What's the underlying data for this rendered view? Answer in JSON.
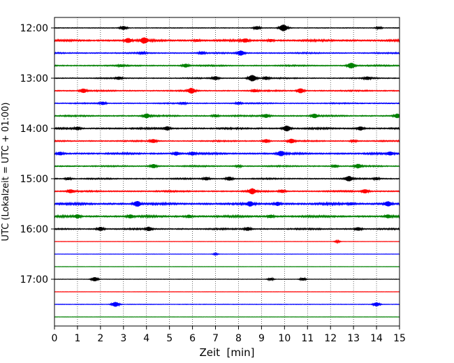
{
  "chart_data": {
    "type": "line",
    "title": "",
    "xlabel": "Zeit  [min]",
    "ylabel": "UTC (Lokalzeit = UTC + 01:00)",
    "xlim": [
      0,
      15
    ],
    "x_ticks": [
      "0",
      "1",
      "2",
      "3",
      "4",
      "5",
      "6",
      "7",
      "8",
      "9",
      "10",
      "11",
      "12",
      "13",
      "14",
      "15"
    ],
    "y_ticks": [
      "12:00",
      "13:00",
      "14:00",
      "15:00",
      "16:00",
      "17:00"
    ],
    "trace_interval_minutes": 15,
    "first_trace": "12:00",
    "last_trace": "17:45",
    "color_cycle": [
      "#000000",
      "#ff0000",
      "#0000ff",
      "#008000"
    ],
    "grid": "vertical dotted at each minute",
    "legend": "none",
    "traces": [
      {
        "start": "12:00",
        "color": "#000000",
        "noise": 0.3,
        "events": [
          {
            "t": 3.0,
            "amp": 2.4
          },
          {
            "t": 8.8,
            "amp": 2.2
          },
          {
            "t": 9.95,
            "amp": 4.4
          },
          {
            "t": 14.1,
            "amp": 1.4
          }
        ]
      },
      {
        "start": "12:15",
        "color": "#ff0000",
        "noise": 0.6,
        "events": [
          {
            "t": 3.2,
            "amp": 2.8
          },
          {
            "t": 3.9,
            "amp": 3.6
          },
          {
            "t": 6.2,
            "amp": 1.2
          },
          {
            "t": 8.3,
            "amp": 2.2
          },
          {
            "t": 9.4,
            "amp": 1.5
          }
        ]
      },
      {
        "start": "12:30",
        "color": "#0000ff",
        "noise": 0.4,
        "events": [
          {
            "t": 3.8,
            "amp": 1.4
          },
          {
            "t": 6.4,
            "amp": 1.8
          },
          {
            "t": 8.1,
            "amp": 3.2
          }
        ]
      },
      {
        "start": "12:45",
        "color": "#008000",
        "noise": 0.4,
        "events": [
          {
            "t": 2.9,
            "amp": 1.3
          },
          {
            "t": 5.7,
            "amp": 2.2
          },
          {
            "t": 12.9,
            "amp": 3.6
          }
        ]
      },
      {
        "start": "13:00",
        "color": "#000000",
        "noise": 0.35,
        "events": [
          {
            "t": 2.8,
            "amp": 1.8
          },
          {
            "t": 7.0,
            "amp": 2.3
          },
          {
            "t": 8.6,
            "amp": 4.2
          },
          {
            "t": 9.2,
            "amp": 2.0
          },
          {
            "t": 13.6,
            "amp": 2.0
          }
        ]
      },
      {
        "start": "13:15",
        "color": "#ff0000",
        "noise": 0.4,
        "events": [
          {
            "t": 1.25,
            "amp": 2.6
          },
          {
            "t": 5.95,
            "amp": 3.4
          },
          {
            "t": 8.7,
            "amp": 1.8
          },
          {
            "t": 10.7,
            "amp": 3.0
          }
        ]
      },
      {
        "start": "13:30",
        "color": "#0000ff",
        "noise": 0.35,
        "events": [
          {
            "t": 2.1,
            "amp": 2.0
          },
          {
            "t": 5.6,
            "amp": 1.3
          },
          {
            "t": 8.0,
            "amp": 1.6
          }
        ]
      },
      {
        "start": "13:45",
        "color": "#008000",
        "noise": 0.45,
        "events": [
          {
            "t": 4.0,
            "amp": 2.8
          },
          {
            "t": 7.0,
            "amp": 1.6
          },
          {
            "t": 9.2,
            "amp": 2.4
          },
          {
            "t": 11.3,
            "amp": 2.6
          },
          {
            "t": 14.9,
            "amp": 2.6
          }
        ]
      },
      {
        "start": "14:00",
        "color": "#000000",
        "noise": 0.5,
        "events": [
          {
            "t": 1.0,
            "amp": 1.8
          },
          {
            "t": 4.9,
            "amp": 2.3
          },
          {
            "t": 10.1,
            "amp": 3.6
          },
          {
            "t": 13.3,
            "amp": 2.4
          }
        ]
      },
      {
        "start": "14:15",
        "color": "#ff0000",
        "noise": 0.4,
        "events": [
          {
            "t": 4.3,
            "amp": 2.4
          },
          {
            "t": 9.2,
            "amp": 2.2
          },
          {
            "t": 10.3,
            "amp": 2.8
          },
          {
            "t": 13.0,
            "amp": 1.4
          }
        ]
      },
      {
        "start": "14:30",
        "color": "#0000ff",
        "noise": 0.55,
        "events": [
          {
            "t": 0.25,
            "amp": 2.0
          },
          {
            "t": 5.3,
            "amp": 2.2
          },
          {
            "t": 6.0,
            "amp": 2.0
          },
          {
            "t": 9.85,
            "amp": 3.0
          },
          {
            "t": 14.6,
            "amp": 2.0
          }
        ]
      },
      {
        "start": "14:45",
        "color": "#008000",
        "noise": 0.4,
        "events": [
          {
            "t": 4.3,
            "amp": 2.5
          },
          {
            "t": 8.0,
            "amp": 1.4
          },
          {
            "t": 12.2,
            "amp": 1.8
          },
          {
            "t": 13.2,
            "amp": 2.6
          }
        ]
      },
      {
        "start": "15:00",
        "color": "#000000",
        "noise": 0.4,
        "events": [
          {
            "t": 0.6,
            "amp": 1.5
          },
          {
            "t": 6.6,
            "amp": 2.0
          },
          {
            "t": 7.6,
            "amp": 2.4
          },
          {
            "t": 12.8,
            "amp": 3.2
          },
          {
            "t": 14.0,
            "amp": 1.6
          }
        ]
      },
      {
        "start": "15:15",
        "color": "#ff0000",
        "noise": 0.45,
        "events": [
          {
            "t": 0.7,
            "amp": 2.3
          },
          {
            "t": 8.6,
            "amp": 3.4
          },
          {
            "t": 9.9,
            "amp": 2.0
          },
          {
            "t": 13.5,
            "amp": 2.5
          }
        ]
      },
      {
        "start": "15:30",
        "color": "#0000ff",
        "noise": 0.65,
        "events": [
          {
            "t": 3.6,
            "amp": 3.4
          },
          {
            "t": 8.5,
            "amp": 2.6
          },
          {
            "t": 9.7,
            "amp": 2.2
          },
          {
            "t": 12.9,
            "amp": 1.5
          },
          {
            "t": 14.5,
            "amp": 3.0
          }
        ]
      },
      {
        "start": "15:45",
        "color": "#008000",
        "noise": 0.6,
        "events": [
          {
            "t": 1.0,
            "amp": 2.0
          },
          {
            "t": 3.3,
            "amp": 2.2
          },
          {
            "t": 5.85,
            "amp": 1.8
          },
          {
            "t": 9.4,
            "amp": 1.8
          },
          {
            "t": 14.5,
            "amp": 2.0
          }
        ]
      },
      {
        "start": "16:00",
        "color": "#000000",
        "noise": 0.45,
        "events": [
          {
            "t": 2.0,
            "amp": 2.4
          },
          {
            "t": 4.1,
            "amp": 2.4
          },
          {
            "t": 8.4,
            "amp": 2.2
          },
          {
            "t": 13.2,
            "amp": 2.2
          }
        ]
      },
      {
        "start": "16:15",
        "color": "#ff0000",
        "noise": 0.12,
        "events": [
          {
            "t": 12.3,
            "amp": 1.2
          }
        ]
      },
      {
        "start": "16:30",
        "color": "#0000ff",
        "noise": 0.12,
        "events": [
          {
            "t": 7.0,
            "amp": 1.0
          }
        ]
      },
      {
        "start": "16:45",
        "color": "#008000",
        "noise": 0.1,
        "events": []
      },
      {
        "start": "17:00",
        "color": "#000000",
        "noise": 0.15,
        "events": [
          {
            "t": 1.75,
            "amp": 2.8
          },
          {
            "t": 9.4,
            "amp": 1.6
          },
          {
            "t": 10.8,
            "amp": 1.8
          }
        ]
      },
      {
        "start": "17:15",
        "color": "#ff0000",
        "noise": 0.1,
        "events": []
      },
      {
        "start": "17:30",
        "color": "#0000ff",
        "noise": 0.2,
        "events": [
          {
            "t": 2.65,
            "amp": 3.2
          },
          {
            "t": 14.0,
            "amp": 2.6
          }
        ]
      },
      {
        "start": "17:45",
        "color": "#008000",
        "noise": 0.1,
        "events": []
      }
    ]
  }
}
